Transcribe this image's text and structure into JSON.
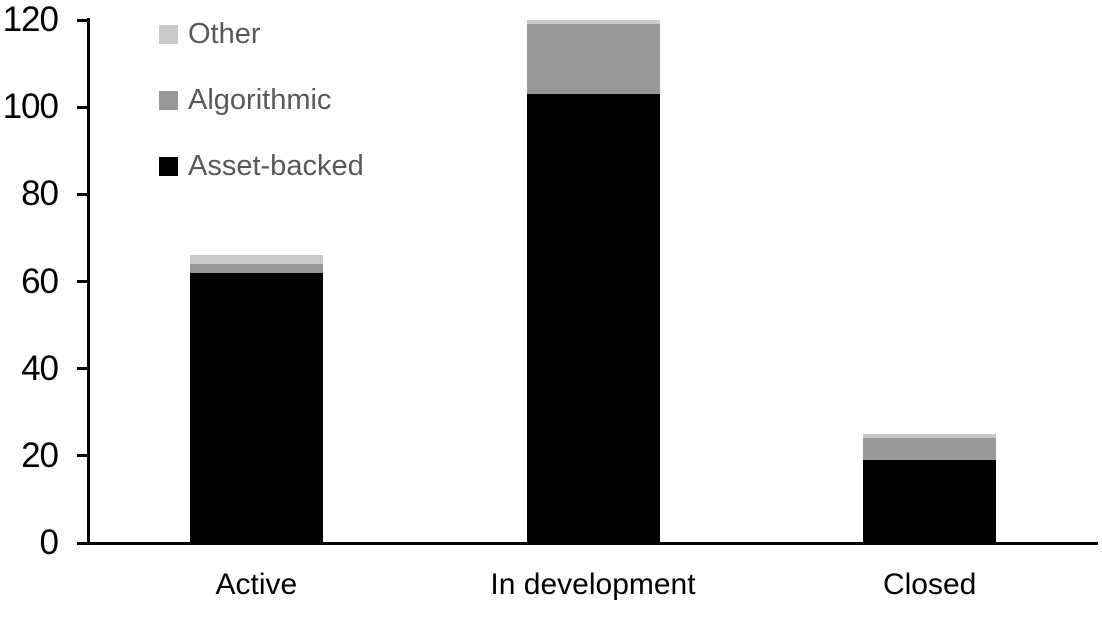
{
  "chart_data": {
    "type": "bar",
    "stacked": true,
    "title": "",
    "xlabel": "",
    "ylabel": "",
    "categories": [
      "Active",
      "In development",
      "Closed"
    ],
    "series": [
      {
        "name": "Asset-backed",
        "color": "#000000",
        "values": [
          62,
          103,
          19
        ]
      },
      {
        "name": "Algorithmic",
        "color": "#989898",
        "values": [
          2,
          16,
          5
        ]
      },
      {
        "name": "Other",
        "color": "#c9c9c9",
        "values": [
          2,
          1,
          1
        ]
      }
    ],
    "totals": [
      66,
      120,
      25
    ],
    "ylim": [
      0,
      120
    ],
    "yticks": [
      0,
      20,
      40,
      60,
      80,
      100,
      120
    ],
    "grid": false,
    "legend": {
      "position": "top-left",
      "entries": [
        {
          "label": "Other",
          "color": "#c9c9c9"
        },
        {
          "label": "Algorithmic",
          "color": "#989898"
        },
        {
          "label": "Asset-backed",
          "color": "#000000"
        }
      ]
    },
    "colors": {
      "axis": "#000000",
      "legend_text": "#595959",
      "background": "#ffffff"
    }
  }
}
